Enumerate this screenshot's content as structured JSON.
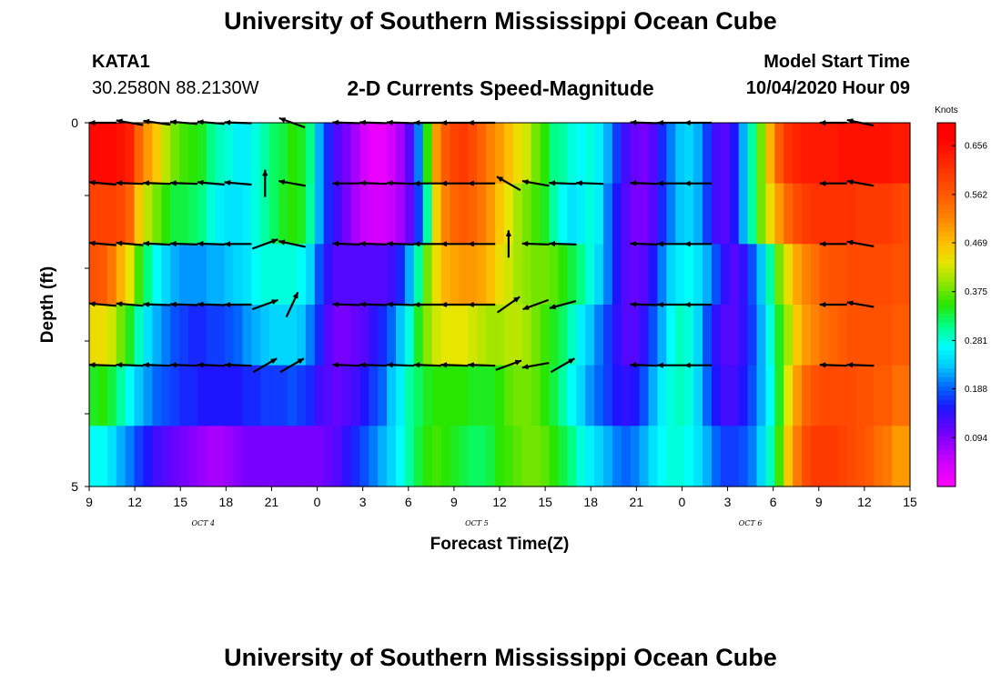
{
  "header": {
    "title": "University of Southern Mississippi Ocean Cube",
    "station": "KATA1",
    "coords": "30.2580N 88.2130W",
    "subtitle": "2-D Currents Speed-Magnitude",
    "start_label": "Model Start Time",
    "start_value": "10/04/2020 Hour 09"
  },
  "footer": {
    "title": "University of Southern Mississippi Ocean Cube"
  },
  "chart_data": {
    "type": "heatmap",
    "title": "2-D Currents Speed-Magnitude",
    "xlabel": "Forecast Time(Z)",
    "ylabel": "Depth (ft)",
    "ylim": [
      0,
      5
    ],
    "x_ticks": [
      "9",
      "12",
      "15",
      "18",
      "21",
      "0",
      "3",
      "6",
      "9",
      "12",
      "15",
      "18",
      "21",
      "0",
      "3",
      "6",
      "9",
      "12",
      "15"
    ],
    "date_labels": [
      {
        "label": "OCT 4",
        "at_tick": 2.5
      },
      {
        "label": "OCT 5",
        "at_tick": 8.5
      },
      {
        "label": "OCT 6",
        "at_tick": 14.5
      }
    ],
    "y_ticks": [
      "0",
      "",
      "",
      "",
      "",
      "5"
    ],
    "colorbar": {
      "unit": "Knots",
      "ticks": [
        "0.656",
        "0.562",
        "0.469",
        "0.375",
        "0.281",
        "0.188",
        "0.094"
      ],
      "min": 0.0,
      "max": 0.7
    },
    "speed_rows_start": "09Z Oct 4",
    "speed_rows_step_hours": 1,
    "speed_rows": [
      [
        0.66,
        0.66,
        0.66,
        0.65,
        0.63,
        0.55,
        0.5,
        0.46,
        0.41,
        0.38,
        0.36,
        0.35,
        0.34,
        0.31,
        0.29,
        0.28,
        0.26,
        0.26,
        0.28,
        0.3,
        0.32,
        0.33,
        0.35,
        0.34,
        0.31,
        0.22,
        0.16,
        0.12,
        0.1,
        0.07,
        0.04,
        0.02,
        0.02,
        0.04,
        0.07,
        0.12,
        0.2,
        0.35,
        0.5,
        0.56,
        0.59,
        0.6,
        0.58,
        0.55,
        0.52,
        0.5,
        0.47,
        0.44,
        0.42,
        0.38,
        0.35,
        0.31,
        0.3,
        0.28,
        0.27,
        0.28,
        0.26,
        0.22,
        0.17,
        0.13,
        0.11,
        0.1,
        0.12,
        0.16,
        0.2,
        0.23,
        0.24,
        0.22,
        0.17,
        0.13,
        0.12,
        0.15,
        0.22,
        0.3,
        0.38,
        0.48,
        0.56,
        0.61,
        0.63,
        0.64,
        0.64,
        0.64,
        0.64,
        0.65,
        0.65,
        0.65,
        0.65,
        0.65,
        0.65,
        0.64,
        0.64
      ],
      [
        0.59,
        0.59,
        0.59,
        0.58,
        0.55,
        0.46,
        0.41,
        0.38,
        0.35,
        0.33,
        0.33,
        0.32,
        0.31,
        0.28,
        0.26,
        0.25,
        0.25,
        0.26,
        0.28,
        0.3,
        0.32,
        0.34,
        0.35,
        0.34,
        0.3,
        0.22,
        0.16,
        0.13,
        0.1,
        0.07,
        0.05,
        0.04,
        0.04,
        0.05,
        0.07,
        0.11,
        0.17,
        0.3,
        0.45,
        0.52,
        0.55,
        0.56,
        0.55,
        0.53,
        0.5,
        0.46,
        0.43,
        0.4,
        0.38,
        0.36,
        0.34,
        0.3,
        0.27,
        0.25,
        0.26,
        0.28,
        0.26,
        0.2,
        0.15,
        0.12,
        0.1,
        0.1,
        0.12,
        0.16,
        0.2,
        0.23,
        0.24,
        0.22,
        0.17,
        0.13,
        0.12,
        0.15,
        0.22,
        0.3,
        0.38,
        0.44,
        0.5,
        0.55,
        0.58,
        0.6,
        0.61,
        0.61,
        0.61,
        0.61,
        0.61,
        0.6,
        0.6,
        0.6,
        0.6,
        0.59,
        0.58
      ],
      [
        0.57,
        0.56,
        0.53,
        0.48,
        0.43,
        0.36,
        0.31,
        0.27,
        0.24,
        0.22,
        0.21,
        0.21,
        0.21,
        0.22,
        0.22,
        0.23,
        0.24,
        0.25,
        0.27,
        0.28,
        0.28,
        0.28,
        0.28,
        0.27,
        0.24,
        0.18,
        0.14,
        0.12,
        0.12,
        0.12,
        0.12,
        0.12,
        0.12,
        0.13,
        0.16,
        0.22,
        0.3,
        0.38,
        0.44,
        0.48,
        0.49,
        0.5,
        0.5,
        0.49,
        0.47,
        0.44,
        0.42,
        0.4,
        0.39,
        0.38,
        0.38,
        0.37,
        0.35,
        0.33,
        0.31,
        0.28,
        0.24,
        0.2,
        0.15,
        0.12,
        0.11,
        0.12,
        0.15,
        0.2,
        0.24,
        0.26,
        0.27,
        0.25,
        0.22,
        0.18,
        0.14,
        0.12,
        0.14,
        0.18,
        0.23,
        0.3,
        0.38,
        0.44,
        0.49,
        0.52,
        0.54,
        0.56,
        0.57,
        0.57,
        0.58,
        0.58,
        0.58,
        0.58,
        0.58,
        0.57,
        0.57
      ],
      [
        0.44,
        0.44,
        0.42,
        0.38,
        0.34,
        0.29,
        0.25,
        0.22,
        0.2,
        0.18,
        0.17,
        0.16,
        0.16,
        0.17,
        0.17,
        0.18,
        0.19,
        0.21,
        0.22,
        0.23,
        0.24,
        0.24,
        0.24,
        0.23,
        0.2,
        0.16,
        0.12,
        0.1,
        0.1,
        0.11,
        0.12,
        0.14,
        0.16,
        0.19,
        0.23,
        0.28,
        0.34,
        0.39,
        0.42,
        0.43,
        0.43,
        0.43,
        0.42,
        0.41,
        0.4,
        0.4,
        0.41,
        0.41,
        0.4,
        0.38,
        0.36,
        0.34,
        0.32,
        0.29,
        0.26,
        0.23,
        0.2,
        0.17,
        0.14,
        0.12,
        0.12,
        0.14,
        0.18,
        0.22,
        0.27,
        0.29,
        0.28,
        0.24,
        0.18,
        0.14,
        0.12,
        0.12,
        0.14,
        0.17,
        0.22,
        0.28,
        0.34,
        0.4,
        0.46,
        0.5,
        0.52,
        0.54,
        0.55,
        0.56,
        0.57,
        0.57,
        0.57,
        0.57,
        0.57,
        0.56,
        0.56
      ],
      [
        0.34,
        0.35,
        0.33,
        0.3,
        0.27,
        0.23,
        0.21,
        0.19,
        0.18,
        0.17,
        0.16,
        0.16,
        0.15,
        0.15,
        0.15,
        0.15,
        0.15,
        0.16,
        0.16,
        0.17,
        0.17,
        0.17,
        0.18,
        0.17,
        0.16,
        0.13,
        0.12,
        0.11,
        0.12,
        0.13,
        0.15,
        0.17,
        0.19,
        0.23,
        0.26,
        0.3,
        0.32,
        0.34,
        0.35,
        0.35,
        0.35,
        0.35,
        0.34,
        0.34,
        0.34,
        0.35,
        0.37,
        0.38,
        0.38,
        0.37,
        0.35,
        0.33,
        0.3,
        0.27,
        0.24,
        0.21,
        0.19,
        0.17,
        0.15,
        0.14,
        0.15,
        0.18,
        0.22,
        0.26,
        0.28,
        0.29,
        0.28,
        0.24,
        0.19,
        0.15,
        0.13,
        0.13,
        0.15,
        0.18,
        0.22,
        0.27,
        0.34,
        0.43,
        0.5,
        0.55,
        0.57,
        0.58,
        0.58,
        0.58,
        0.58,
        0.57,
        0.57,
        0.56,
        0.56,
        0.54,
        0.54
      ],
      [
        0.27,
        0.27,
        0.25,
        0.22,
        0.2,
        0.17,
        0.15,
        0.13,
        0.12,
        0.11,
        0.1,
        0.09,
        0.08,
        0.07,
        0.07,
        0.08,
        0.09,
        0.1,
        0.1,
        0.1,
        0.1,
        0.1,
        0.1,
        0.1,
        0.1,
        0.1,
        0.11,
        0.12,
        0.14,
        0.16,
        0.18,
        0.2,
        0.22,
        0.24,
        0.27,
        0.3,
        0.33,
        0.35,
        0.36,
        0.35,
        0.34,
        0.33,
        0.32,
        0.32,
        0.33,
        0.35,
        0.36,
        0.37,
        0.38,
        0.38,
        0.37,
        0.35,
        0.33,
        0.31,
        0.28,
        0.26,
        0.24,
        0.22,
        0.2,
        0.19,
        0.2,
        0.22,
        0.25,
        0.27,
        0.28,
        0.28,
        0.27,
        0.25,
        0.22,
        0.19,
        0.17,
        0.17,
        0.18,
        0.2,
        0.24,
        0.29,
        0.36,
        0.46,
        0.53,
        0.58,
        0.6,
        0.6,
        0.6,
        0.59,
        0.58,
        0.57,
        0.56,
        0.54,
        0.53,
        0.5,
        0.5
      ]
    ],
    "vector_columns_hours": [
      1,
      4,
      7,
      10,
      13,
      16,
      19,
      22,
      25,
      28,
      31,
      34,
      37,
      40,
      43,
      46,
      49,
      52,
      55,
      58,
      61,
      64,
      67,
      70,
      73,
      76,
      79,
      82,
      85
    ],
    "vectors_dir_deg": [
      [
        180,
        170,
        172,
        175,
        175,
        178,
        null,
        160,
        null,
        178,
        178,
        178,
        180,
        180,
        180,
        null,
        null,
        null,
        null,
        null,
        178,
        180,
        180,
        null,
        null,
        null,
        null,
        180,
        168
      ],
      [
        175,
        178,
        178,
        178,
        175,
        175,
        90,
        170,
        null,
        180,
        178,
        178,
        180,
        180,
        180,
        150,
        170,
        178,
        178,
        null,
        178,
        180,
        180,
        null,
        null,
        null,
        null,
        180,
        170
      ],
      [
        175,
        175,
        177,
        178,
        178,
        180,
        20,
        168,
        null,
        178,
        178,
        178,
        180,
        180,
        180,
        90,
        178,
        178,
        null,
        null,
        178,
        180,
        180,
        null,
        null,
        null,
        null,
        180,
        170
      ],
      [
        175,
        175,
        178,
        178,
        178,
        180,
        20,
        65,
        null,
        178,
        178,
        178,
        180,
        180,
        180,
        35,
        200,
        195,
        null,
        null,
        178,
        180,
        180,
        null,
        null,
        null,
        null,
        180,
        170
      ],
      [
        178,
        178,
        178,
        178,
        178,
        178,
        30,
        30,
        null,
        178,
        178,
        178,
        178,
        178,
        178,
        20,
        190,
        30,
        null,
        null,
        178,
        180,
        180,
        null,
        null,
        null,
        null,
        178,
        178
      ],
      [
        null,
        null,
        null,
        null,
        null,
        null,
        null,
        null,
        null,
        null,
        null,
        null,
        null,
        null,
        null,
        null,
        null,
        null,
        null,
        null,
        null,
        null,
        null,
        null,
        null,
        null,
        null,
        null,
        null
      ]
    ]
  }
}
